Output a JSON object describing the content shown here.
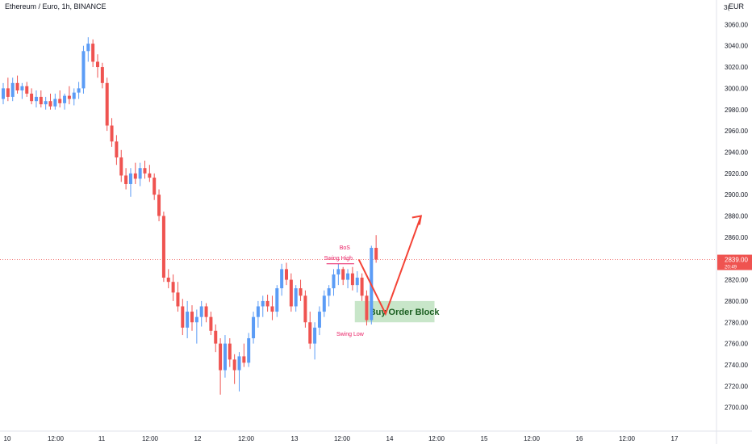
{
  "header": {
    "symbol_title": "Ethereum / Euro, 1h, BINANCE",
    "currency": "EUR",
    "currency_partial": "3("
  },
  "price_tag": {
    "price": "2839.00",
    "countdown": "20:49"
  },
  "chart_data": {
    "type": "candlestick",
    "title": "Ethereum / Euro, 1h, BINANCE",
    "y_unit": "EUR",
    "ylim": [
      2690,
      3080
    ],
    "y_ticks": [
      2700,
      2720,
      2740,
      2760,
      2780,
      2800,
      2820,
      2840,
      2860,
      2880,
      2900,
      2920,
      2940,
      2960,
      2980,
      3000,
      3020,
      3040,
      3060
    ],
    "x_ticks": [
      "10",
      "12:00",
      "11",
      "12:00",
      "12",
      "12:00",
      "13",
      "12:00",
      "14",
      "12:00",
      "15",
      "12:00",
      "16",
      "12:00",
      "17"
    ],
    "last_price": 2839.0,
    "colors": {
      "up": "#5b9cf6",
      "down": "#ef5350",
      "zone": "#c8e6c9",
      "zone_text": "#1b5e20",
      "annotation": "#e91e63",
      "arrow": "#f44336",
      "price_line": "#ef5350"
    },
    "candles": [
      {
        "o": 2990,
        "h": 3005,
        "l": 2985,
        "c": 3000
      },
      {
        "o": 3000,
        "h": 3010,
        "l": 2988,
        "c": 2992
      },
      {
        "o": 2992,
        "h": 3010,
        "l": 2988,
        "c": 3005
      },
      {
        "o": 3005,
        "h": 3012,
        "l": 2995,
        "c": 2998
      },
      {
        "o": 2998,
        "h": 3005,
        "l": 2990,
        "c": 3002
      },
      {
        "o": 3002,
        "h": 3006,
        "l": 2992,
        "c": 2995
      },
      {
        "o": 2995,
        "h": 3000,
        "l": 2985,
        "c": 2988
      },
      {
        "o": 2988,
        "h": 2998,
        "l": 2982,
        "c": 2992
      },
      {
        "o": 2992,
        "h": 2998,
        "l": 2982,
        "c": 2985
      },
      {
        "o": 2985,
        "h": 2992,
        "l": 2980,
        "c": 2988
      },
      {
        "o": 2988,
        "h": 2995,
        "l": 2980,
        "c": 2983
      },
      {
        "o": 2983,
        "h": 2995,
        "l": 2980,
        "c": 2990
      },
      {
        "o": 2990,
        "h": 2998,
        "l": 2982,
        "c": 2986
      },
      {
        "o": 2986,
        "h": 2995,
        "l": 2980,
        "c": 2993
      },
      {
        "o": 2993,
        "h": 3002,
        "l": 2985,
        "c": 2990
      },
      {
        "o": 2990,
        "h": 3000,
        "l": 2984,
        "c": 2996
      },
      {
        "o": 2996,
        "h": 3006,
        "l": 2990,
        "c": 3000
      },
      {
        "o": 3000,
        "h": 3040,
        "l": 2995,
        "c": 3035
      },
      {
        "o": 3035,
        "h": 3048,
        "l": 3025,
        "c": 3042
      },
      {
        "o": 3042,
        "h": 3046,
        "l": 3020,
        "c": 3025
      },
      {
        "o": 3025,
        "h": 3032,
        "l": 3010,
        "c": 3020
      },
      {
        "o": 3020,
        "h": 3024,
        "l": 3000,
        "c": 3005
      },
      {
        "o": 3005,
        "h": 3010,
        "l": 2960,
        "c": 2965
      },
      {
        "o": 2965,
        "h": 2972,
        "l": 2945,
        "c": 2950
      },
      {
        "o": 2950,
        "h": 2956,
        "l": 2928,
        "c": 2935
      },
      {
        "o": 2935,
        "h": 2942,
        "l": 2912,
        "c": 2918
      },
      {
        "o": 2918,
        "h": 2925,
        "l": 2905,
        "c": 2910
      },
      {
        "o": 2910,
        "h": 2925,
        "l": 2898,
        "c": 2920
      },
      {
        "o": 2920,
        "h": 2930,
        "l": 2910,
        "c": 2915
      },
      {
        "o": 2915,
        "h": 2930,
        "l": 2908,
        "c": 2925
      },
      {
        "o": 2925,
        "h": 2932,
        "l": 2915,
        "c": 2920
      },
      {
        "o": 2920,
        "h": 2928,
        "l": 2912,
        "c": 2916
      },
      {
        "o": 2916,
        "h": 2920,
        "l": 2895,
        "c": 2900
      },
      {
        "o": 2900,
        "h": 2905,
        "l": 2875,
        "c": 2880
      },
      {
        "o": 2880,
        "h": 2884,
        "l": 2818,
        "c": 2822
      },
      {
        "o": 2822,
        "h": 2830,
        "l": 2812,
        "c": 2818
      },
      {
        "o": 2818,
        "h": 2825,
        "l": 2800,
        "c": 2808
      },
      {
        "o": 2808,
        "h": 2818,
        "l": 2790,
        "c": 2795
      },
      {
        "o": 2795,
        "h": 2802,
        "l": 2768,
        "c": 2775
      },
      {
        "o": 2775,
        "h": 2800,
        "l": 2765,
        "c": 2790
      },
      {
        "o": 2790,
        "h": 2796,
        "l": 2772,
        "c": 2780
      },
      {
        "o": 2780,
        "h": 2792,
        "l": 2760,
        "c": 2785
      },
      {
        "o": 2785,
        "h": 2800,
        "l": 2776,
        "c": 2795
      },
      {
        "o": 2795,
        "h": 2798,
        "l": 2780,
        "c": 2785
      },
      {
        "o": 2785,
        "h": 2790,
        "l": 2768,
        "c": 2772
      },
      {
        "o": 2772,
        "h": 2778,
        "l": 2752,
        "c": 2760
      },
      {
        "o": 2760,
        "h": 2765,
        "l": 2712,
        "c": 2735
      },
      {
        "o": 2735,
        "h": 2768,
        "l": 2728,
        "c": 2760
      },
      {
        "o": 2760,
        "h": 2765,
        "l": 2738,
        "c": 2745
      },
      {
        "o": 2745,
        "h": 2750,
        "l": 2722,
        "c": 2735
      },
      {
        "o": 2735,
        "h": 2752,
        "l": 2715,
        "c": 2748
      },
      {
        "o": 2748,
        "h": 2760,
        "l": 2738,
        "c": 2742
      },
      {
        "o": 2742,
        "h": 2770,
        "l": 2738,
        "c": 2765
      },
      {
        "o": 2765,
        "h": 2790,
        "l": 2760,
        "c": 2785
      },
      {
        "o": 2785,
        "h": 2800,
        "l": 2775,
        "c": 2795
      },
      {
        "o": 2795,
        "h": 2805,
        "l": 2785,
        "c": 2800
      },
      {
        "o": 2800,
        "h": 2806,
        "l": 2790,
        "c": 2795
      },
      {
        "o": 2795,
        "h": 2805,
        "l": 2782,
        "c": 2790
      },
      {
        "o": 2790,
        "h": 2815,
        "l": 2785,
        "c": 2812
      },
      {
        "o": 2812,
        "h": 2835,
        "l": 2805,
        "c": 2830
      },
      {
        "o": 2830,
        "h": 2836,
        "l": 2815,
        "c": 2820
      },
      {
        "o": 2820,
        "h": 2826,
        "l": 2790,
        "c": 2795
      },
      {
        "o": 2795,
        "h": 2815,
        "l": 2790,
        "c": 2812
      },
      {
        "o": 2812,
        "h": 2820,
        "l": 2800,
        "c": 2805
      },
      {
        "o": 2805,
        "h": 2810,
        "l": 2775,
        "c": 2780
      },
      {
        "o": 2780,
        "h": 2790,
        "l": 2755,
        "c": 2760
      },
      {
        "o": 2760,
        "h": 2780,
        "l": 2745,
        "c": 2775
      },
      {
        "o": 2775,
        "h": 2795,
        "l": 2768,
        "c": 2790
      },
      {
        "o": 2790,
        "h": 2810,
        "l": 2785,
        "c": 2805
      },
      {
        "o": 2805,
        "h": 2815,
        "l": 2795,
        "c": 2812
      },
      {
        "o": 2812,
        "h": 2830,
        "l": 2805,
        "c": 2825
      },
      {
        "o": 2825,
        "h": 2835,
        "l": 2815,
        "c": 2830
      },
      {
        "o": 2830,
        "h": 2832,
        "l": 2815,
        "c": 2820
      },
      {
        "o": 2820,
        "h": 2830,
        "l": 2812,
        "c": 2826
      },
      {
        "o": 2826,
        "h": 2832,
        "l": 2810,
        "c": 2815
      },
      {
        "o": 2815,
        "h": 2828,
        "l": 2808,
        "c": 2822
      },
      {
        "o": 2822,
        "h": 2826,
        "l": 2800,
        "c": 2805
      },
      {
        "o": 2805,
        "h": 2810,
        "l": 2777,
        "c": 2782
      },
      {
        "o": 2782,
        "h": 2852,
        "l": 2778,
        "c": 2850
      },
      {
        "o": 2850,
        "h": 2862,
        "l": 2836,
        "c": 2839
      }
    ]
  },
  "annotations": {
    "bos": "BoS",
    "swing_high": "Swing High",
    "swing_low": "Swing Low",
    "zone": {
      "label": "Buy Order Block",
      "from": 2780,
      "to": 2800,
      "start_index": 75,
      "end_index": 90
    },
    "projection": {
      "start": {
        "i": 75,
        "p": 2839
      },
      "mid": {
        "i": 81,
        "p": 2788
      },
      "end": {
        "i": 88,
        "p": 2880
      }
    },
    "swing_high_level": 2835,
    "swing_low_level": 2778
  }
}
